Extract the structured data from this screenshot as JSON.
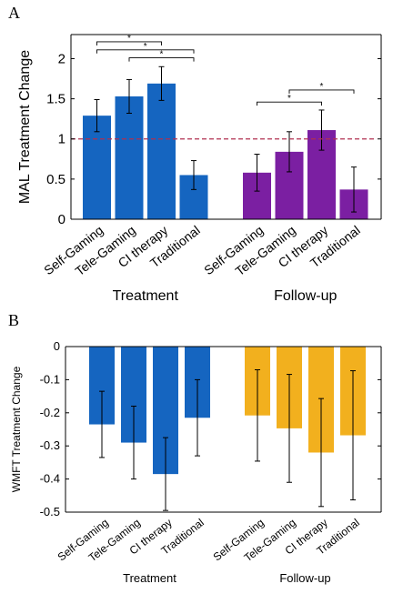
{
  "figure": {
    "panel_a_letter": "A",
    "panel_b_letter": "B"
  },
  "chart_data": [
    {
      "type": "bar",
      "panel": "A",
      "title": "",
      "ylabel": "MAL Treatment Change",
      "xlabel": "",
      "ylim": [
        0,
        2.3
      ],
      "yticks": [
        0,
        0.5,
        1,
        1.5,
        2
      ],
      "ytick_labels": [
        "0",
        "0.5",
        "1",
        "1.5",
        "2"
      ],
      "categories": [
        "Self-Gaming",
        "Tele-Gaming",
        "CI therapy",
        "Traditional"
      ],
      "groups": [
        {
          "name": "Treatment",
          "color": "#1565c0",
          "values": [
            1.29,
            1.53,
            1.69,
            0.55
          ],
          "errors": [
            0.2,
            0.21,
            0.21,
            0.18
          ]
        },
        {
          "name": "Follow-up",
          "color": "#7b1fa2",
          "values": [
            0.58,
            0.84,
            1.11,
            0.37
          ],
          "errors": [
            0.23,
            0.25,
            0.25,
            0.28
          ]
        }
      ],
      "reference_line": {
        "y": 1,
        "color": "#b03050",
        "style": "dashed"
      },
      "significance": [
        {
          "group": 0,
          "from": 0,
          "to": 2,
          "y": 2.21,
          "label": "*"
        },
        {
          "group": 0,
          "from": 0,
          "to": 3,
          "y": 2.11,
          "label": "*"
        },
        {
          "group": 0,
          "from": 1,
          "to": 3,
          "y": 2.01,
          "label": "*"
        },
        {
          "group": 1,
          "from": 1,
          "to": 3,
          "y": 1.61,
          "label": "*"
        },
        {
          "group": 1,
          "from": 0,
          "to": 2,
          "y": 1.46,
          "label": "*"
        }
      ],
      "grid": false,
      "legend": "none"
    },
    {
      "type": "bar",
      "panel": "B",
      "title": "",
      "ylabel": "WMFT Treatment Change",
      "xlabel": "",
      "ylim": [
        -0.5,
        0
      ],
      "yticks": [
        0,
        -0.1,
        -0.2,
        -0.3,
        -0.4,
        -0.5
      ],
      "ytick_labels": [
        "0",
        "-0.1",
        "-0.2",
        "-0.3",
        "-0.4",
        "-0.5"
      ],
      "categories": [
        "Self-Gaming",
        "Tele-Gaming",
        "CI therapy",
        "Traditional"
      ],
      "groups": [
        {
          "name": "Treatment",
          "color": "#1565c0",
          "values": [
            -0.235,
            -0.29,
            -0.385,
            -0.215
          ],
          "errors": [
            0.1,
            0.11,
            0.11,
            0.115
          ]
        },
        {
          "name": "Follow-up",
          "color": "#f2b01e",
          "values": [
            -0.208,
            -0.247,
            -0.32,
            -0.268
          ],
          "errors": [
            0.138,
            0.163,
            0.163,
            0.195
          ]
        }
      ],
      "grid": false,
      "legend": "none"
    }
  ]
}
